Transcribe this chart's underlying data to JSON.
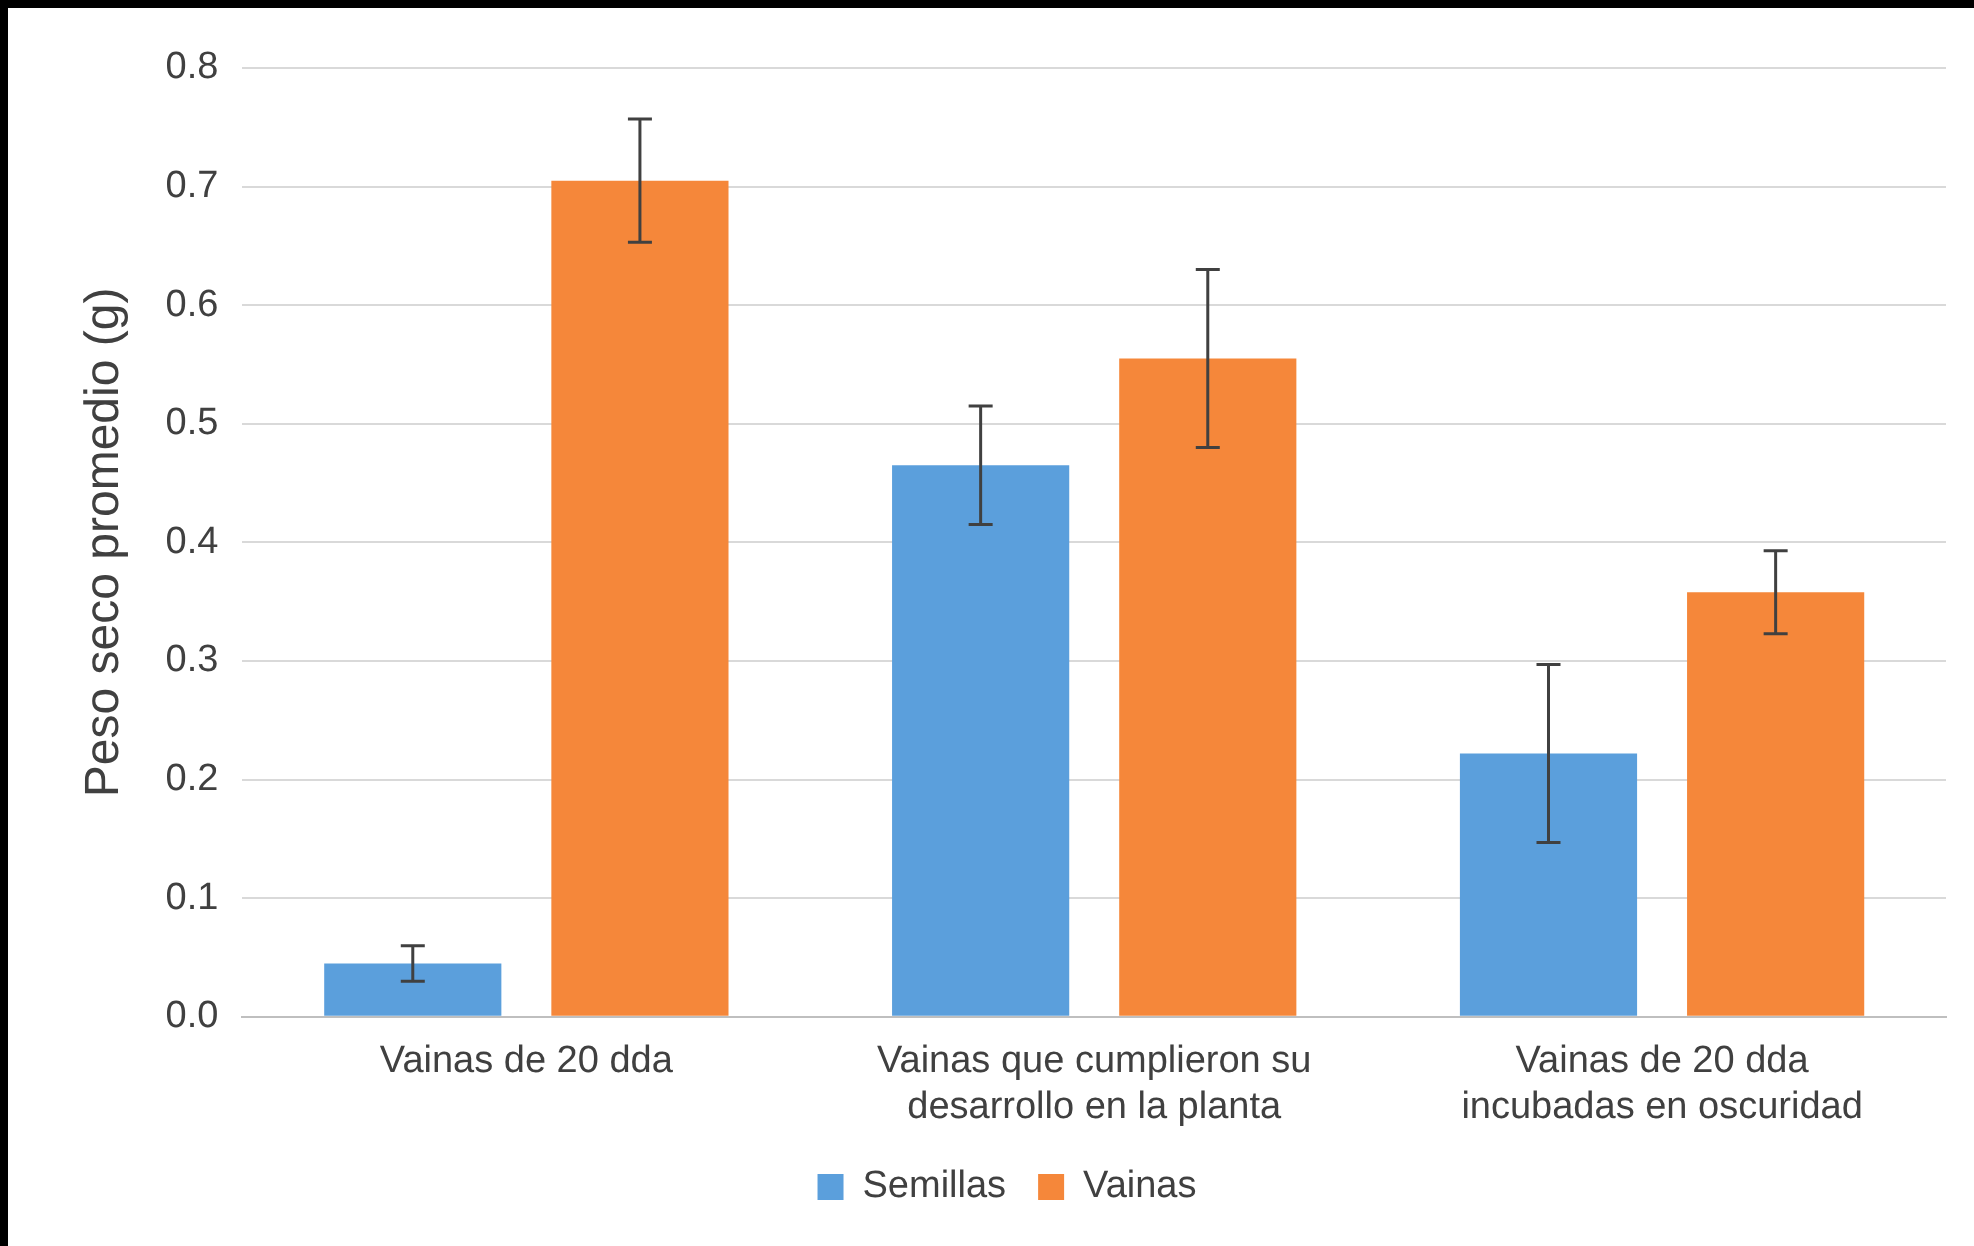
{
  "chart_data": {
    "type": "bar",
    "ylabel": "Peso seco promedio (g)",
    "categories": [
      "Vainas de 20 dda",
      "Vainas que cumplieron su desarrollo en la planta",
      "Vainas de 20 dda incubadas en oscuridad"
    ],
    "series": [
      {
        "name": "Semillas",
        "color": "#5b9fdc",
        "values": [
          0.045,
          0.465,
          0.222
        ],
        "errors": [
          0.015,
          0.05,
          0.075
        ]
      },
      {
        "name": "Vainas",
        "color": "#f5873a",
        "values": [
          0.705,
          0.555,
          0.358
        ],
        "errors": [
          0.052,
          0.075,
          0.035
        ]
      }
    ],
    "ylim": [
      0,
      0.8
    ],
    "yticks": [
      {
        "value": 0,
        "label": "0.0"
      },
      0.1,
      0.2,
      0.3,
      0.4,
      0.5,
      0.6,
      0.7,
      0.8
    ],
    "grid": "y",
    "legend": "bottom"
  }
}
